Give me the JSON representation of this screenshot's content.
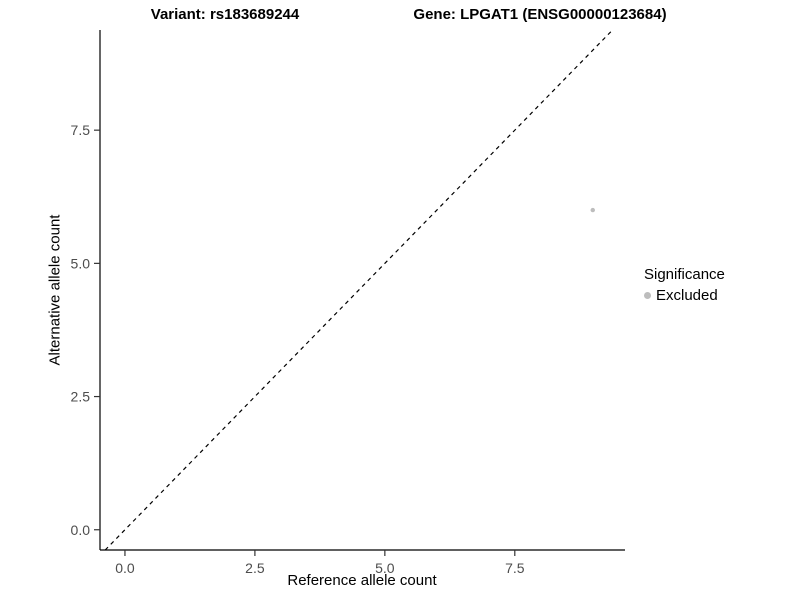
{
  "chart_data": {
    "type": "scatter",
    "title_left": "Variant: rs183689244",
    "title_right": "Gene: LPGAT1 (ENSG00000123684)",
    "xlabel": "Reference allele count",
    "ylabel": "Alternative allele count",
    "xlim": [
      -0.48,
      9.62
    ],
    "ylim": [
      -0.38,
      9.38
    ],
    "xticks": [
      0.0,
      2.5,
      5.0,
      7.5
    ],
    "yticks": [
      0.0,
      2.5,
      5.0,
      7.5
    ],
    "xtick_labels": [
      "0.0",
      "2.5",
      "5.0",
      "7.5"
    ],
    "ytick_labels": [
      "0.0",
      "2.5",
      "5.0",
      "7.5"
    ],
    "grid": false,
    "identity_line": {
      "style": "dashed",
      "slope": 1,
      "intercept": 0,
      "color": "#000000"
    },
    "points": [
      {
        "x": 9,
        "y": 6,
        "series": "Excluded"
      }
    ],
    "point_color": "#bdbdbd",
    "point_radius": 2.2,
    "axis_color": "#000000",
    "tick_label_color": "#4d4d4d",
    "legend": {
      "position": "right",
      "title": "Significance",
      "items": [
        {
          "label": "Excluded",
          "color": "#bdbdbd"
        }
      ]
    }
  }
}
